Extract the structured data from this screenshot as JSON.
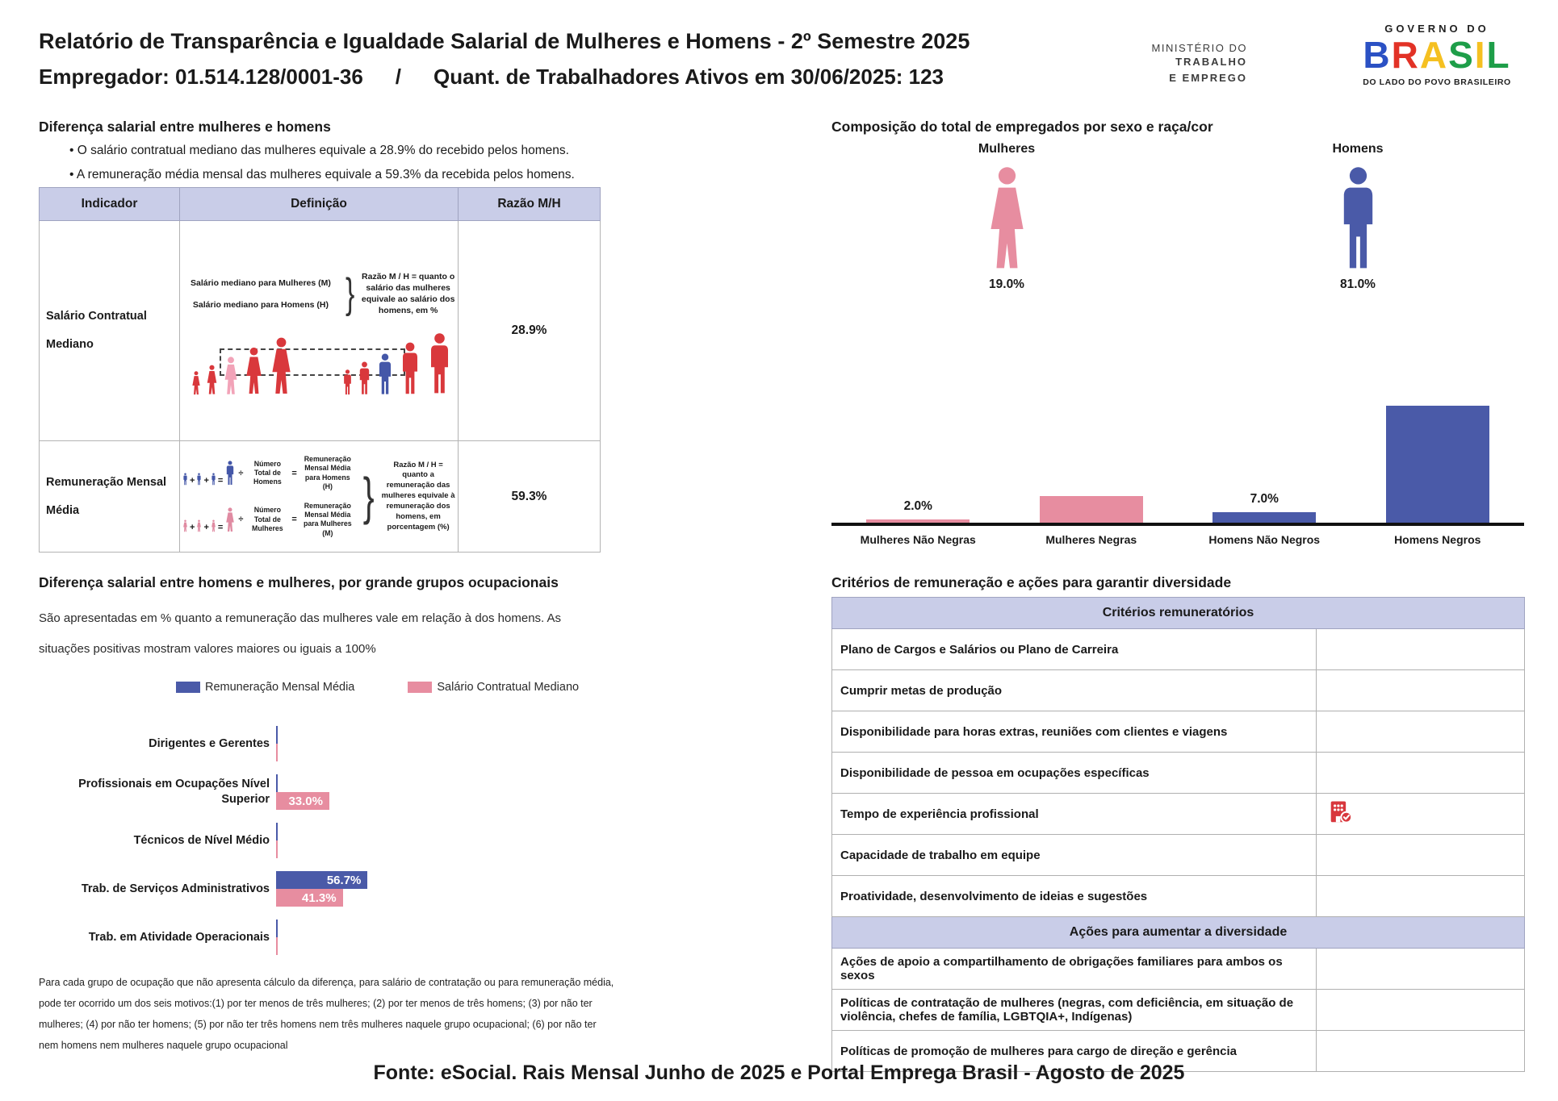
{
  "page": {
    "title": "Relatório de Transparência e Igualdade Salarial de Mulheres e Homens - 2º Semestre 2025",
    "employer": "Empregador: 01.514.128/0001-36",
    "separator": "/",
    "workers": "Quant. de Trabalhadores Ativos em 30/06/2025: 123",
    "footer": "Fonte: eSocial. Rais Mensal Junho de 2025 e Portal Emprega Brasil - Agosto de 2025"
  },
  "logos": {
    "ministry_line1": "MINISTÉRIO DO",
    "ministry_line2": "TRABALHO",
    "ministry_line3": "E EMPREGO",
    "gov_top": "GOVERNO DO",
    "gov_brand_letters": [
      {
        "ch": "B",
        "color": "#2b51c4"
      },
      {
        "ch": "R",
        "color": "#e23226"
      },
      {
        "ch": "A",
        "color": "#f5c021"
      },
      {
        "ch": "S",
        "color": "#1e9e49"
      },
      {
        "ch": "I",
        "color": "#f5c021"
      },
      {
        "ch": "L",
        "color": "#1e9e49"
      }
    ],
    "gov_bottom": "DO LADO DO POVO BRASILEIRO"
  },
  "salary_gap": {
    "title": "Diferença salarial entre mulheres e homens",
    "bullet1": "O salário contratual mediano das mulheres equivale a 28.9% do recebido pelos homens.",
    "bullet2": "A remuneração média mensal das mulheres equivale a 59.3% da recebida pelos homens.",
    "table": {
      "col1": "Indicador",
      "col2": "Definição",
      "col3": "Razão M/H",
      "row1_indicator": "Salário Contratual Mediano",
      "row1_ratio": "28.9%",
      "row2_indicator": "Remuneração Mensal Média",
      "row2_ratio": "59.3%"
    },
    "median_diagram": {
      "label_women": "Salário mediano para Mulheres (M)",
      "label_men": "Salário mediano para Homens (H)",
      "explanation": "Razão M / H = quanto o salário das mulheres equivale ao salário dos homens, em %"
    },
    "mean_diagram": {
      "plus": "+",
      "equals": "=",
      "divide": "÷",
      "men_divisor": "Número Total de Homens",
      "men_result": "Remuneração Mensal Média para Homens (H)",
      "women_divisor": "Número Total de Mulheres",
      "women_result": "Remuneração Mensal Média para Mulheres (M)",
      "explanation": "Razão M / H = quanto a remuneração das mulheres equivale à remuneração dos homens, em porcentagem (%)"
    }
  },
  "composition": {
    "title": "Composição do total de empregados por sexo e raça/cor",
    "women_label": "Mulheres",
    "women_pct": "19.0%",
    "men_label": "Homens",
    "men_pct": "81.0%"
  },
  "occupational": {
    "title": "Diferença salarial entre homens e mulheres, por grande grupos ocupacionais",
    "description": "São apresentadas em % quanto a remuneração das mulheres vale em relação à dos homens. As situações positivas mostram valores maiores ou iguais a 100%",
    "footnote": "Para cada grupo de ocupação que não apresenta cálculo da diferença, para salário de contratação ou para remuneração média, pode ter ocorrido um dos seis motivos:(1) por ter menos de três mulheres; (2) por ter menos de três homens; (3) por não ter mulheres; (4) por não ter homens; (5) por não ter três homens nem três mulheres naquele grupo ocupacional; (6) por não ter nem homens nem mulheres naquele grupo ocupacional"
  },
  "criteria": {
    "title": "Critérios de remuneração e ações para garantir diversidade",
    "sections": [
      {
        "header": "Critérios remuneratórios",
        "rows": [
          {
            "label": "Plano de Cargos e Salários ou Plano de Carreira",
            "checked": false
          },
          {
            "label": "Cumprir metas de produção",
            "checked": false
          },
          {
            "label": "Disponibilidade para horas extras, reuniões com clientes e viagens",
            "checked": false
          },
          {
            "label": "Disponibilidade de pessoa em ocupações específicas",
            "checked": false
          },
          {
            "label": "Tempo de experiência profissional",
            "checked": true
          },
          {
            "label": "Capacidade de trabalho em equipe",
            "checked": false
          },
          {
            "label": "Proatividade, desenvolvimento de ideias e sugestões",
            "checked": false
          }
        ]
      },
      {
        "header": "Ações para aumentar a diversidade",
        "rows": [
          {
            "label": "Ações de apoio a compartilhamento de obrigações familiares para ambos os sexos",
            "checked": false
          },
          {
            "label": "Políticas de contratação de mulheres (negras, com deficiência, em situação de violência, chefes de família, LGBTQIA+, Indígenas)",
            "checked": false
          },
          {
            "label": "Políticas de promoção de mulheres para cargo de direção e gerência",
            "checked": false
          }
        ]
      }
    ]
  },
  "colors": {
    "women_pink": "#e78da0",
    "men_blue": "#4a5aa8",
    "figure_red": "#d9383c",
    "figure_highlight_pink": "#f2a3b8",
    "figure_highlight_blue": "#4457a8",
    "header_lavender": "#c9cde8",
    "building_icon_red": "#d8373d"
  },
  "chart_data": [
    {
      "type": "bar",
      "title": "Composição do total de empregados por sexo e raça/cor",
      "categories": [
        "Mulheres Não Negras",
        "Mulheres Negras",
        "Homens Não Negros",
        "Homens Negros"
      ],
      "values": [
        2.0,
        17.0,
        7.0,
        75.0
      ],
      "labels": [
        "2.0%",
        "17.0%",
        "7.0%",
        "75.0%"
      ],
      "colors": [
        "#e78da0",
        "#e78da0",
        "#4a5aa8",
        "#4a5aa8"
      ],
      "label_inside": [
        false,
        true,
        false,
        true
      ],
      "unit": "%",
      "ylim": [
        0,
        100
      ],
      "grid": false,
      "group_pcts": {
        "Mulheres": 19.0,
        "Homens": 81.0
      }
    },
    {
      "type": "bar",
      "orientation": "horizontal",
      "title": "Diferença salarial entre homens e mulheres, por grande grupos ocupacionais",
      "categories": [
        "Dirigentes e Gerentes",
        "Profissionais em Ocupações Nível Superior",
        "Técnicos de Nível Médio",
        "Trab. de Serviços Administrativos",
        "Trab. em Atividade Operacionais"
      ],
      "series": [
        {
          "name": "Remuneração Mensal Média",
          "color": "#4a5aa8",
          "values": [
            null,
            null,
            null,
            56.7,
            null
          ],
          "labels": [
            null,
            null,
            null,
            "56.7%",
            null
          ]
        },
        {
          "name": "Salário Contratual Mediano",
          "color": "#e78da0",
          "values": [
            null,
            33.0,
            null,
            41.3,
            null
          ],
          "labels": [
            null,
            "33.0%",
            null,
            "41.3%",
            null
          ]
        }
      ],
      "unit": "%",
      "legend_position": "top",
      "grid": false
    }
  ]
}
